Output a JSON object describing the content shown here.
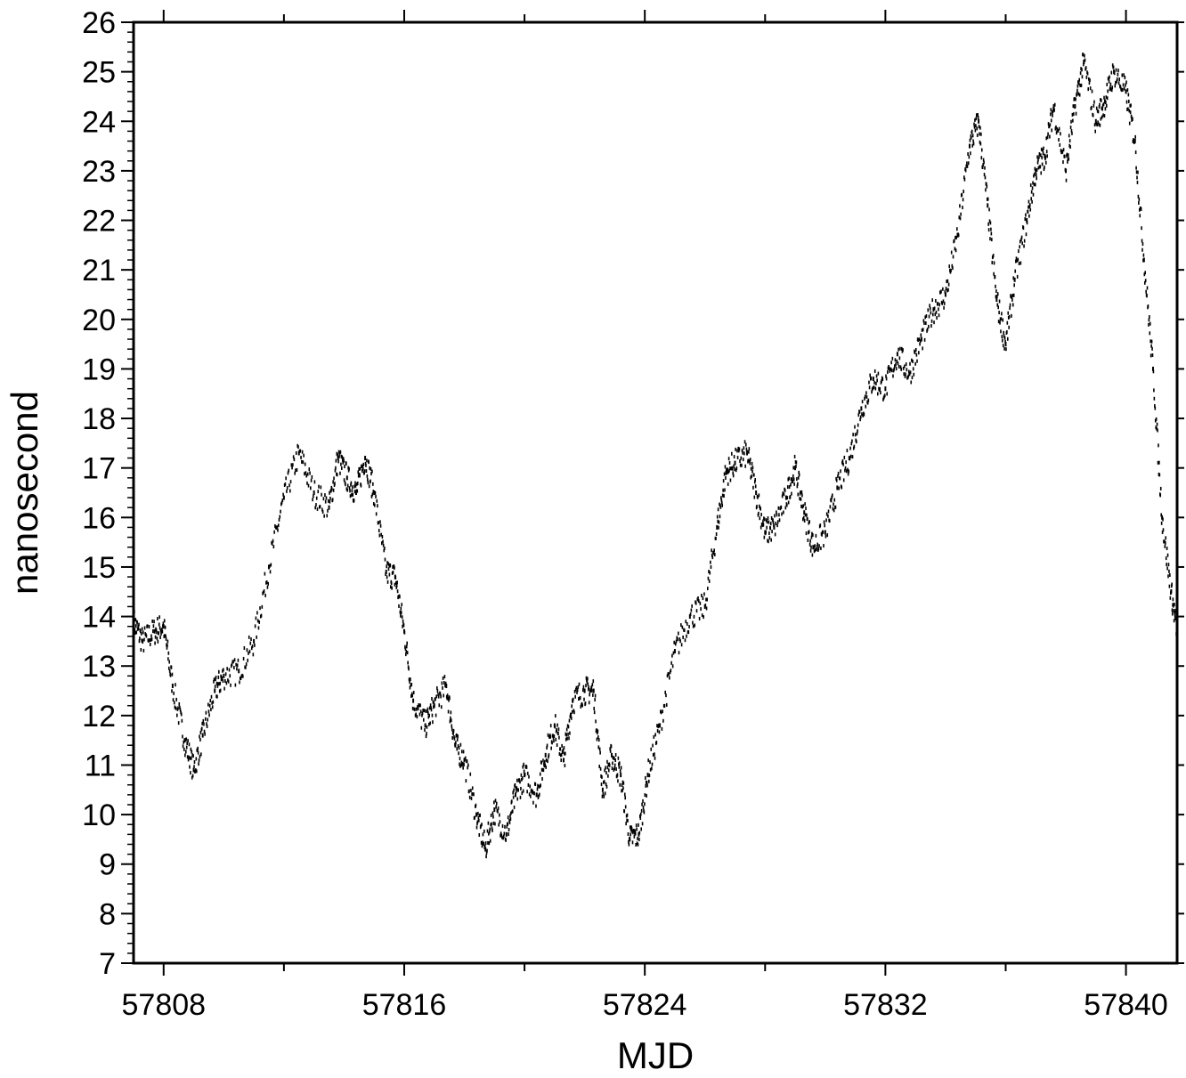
{
  "chart_data": {
    "type": "scatter",
    "title": "",
    "xlabel": "MJD",
    "ylabel": "nanosecond",
    "xlim": [
      57807.0,
      57841.7
    ],
    "ylim": [
      7,
      26
    ],
    "x_ticks": [
      57808,
      57816,
      57824,
      57832,
      57840
    ],
    "x_minor_ticks": [
      57812,
      57820,
      57828,
      57836
    ],
    "y_ticks": [
      7,
      8,
      9,
      10,
      11,
      12,
      13,
      14,
      15,
      16,
      17,
      18,
      19,
      20,
      21,
      22,
      23,
      24,
      25,
      26
    ],
    "y_minor_step": 0.2,
    "grid": false,
    "legend": "none",
    "marker_color": "#000000",
    "series": [
      {
        "name": "",
        "x": [
          57807.0,
          57807.3,
          57807.7,
          57808.0,
          57808.3,
          57808.7,
          57809.0,
          57809.3,
          57809.7,
          57810.0,
          57810.5,
          57811.0,
          57811.5,
          57812.0,
          57812.5,
          57813.0,
          57813.5,
          57813.8,
          57814.1,
          57814.4,
          57814.7,
          57815.0,
          57815.4,
          57815.7,
          57816.0,
          57816.3,
          57816.7,
          57817.0,
          57817.4,
          57817.7,
          57818.0,
          57818.4,
          57818.7,
          57819.0,
          57819.4,
          57819.7,
          57820.0,
          57820.4,
          57820.7,
          57821.0,
          57821.3,
          57821.6,
          57822.0,
          57822.3,
          57822.6,
          57822.9,
          57823.2,
          57823.5,
          57823.8,
          57824.1,
          57824.5,
          57825.0,
          57825.5,
          57826.0,
          57826.4,
          57826.7,
          57827.0,
          57827.4,
          57827.7,
          57828.0,
          57828.3,
          57828.7,
          57829.0,
          57829.3,
          57829.6,
          57830.0,
          57830.4,
          57830.8,
          57831.2,
          57831.6,
          57832.0,
          57832.4,
          57832.8,
          57833.2,
          57833.6,
          57834.0,
          57834.4,
          57834.8,
          57835.1,
          57835.4,
          57835.7,
          57836.0,
          57836.3,
          57836.7,
          57837.0,
          57837.3,
          57837.6,
          57838.0,
          57838.3,
          57838.6,
          57839.0,
          57839.3,
          57839.6,
          57840.0,
          57840.3,
          57840.6,
          57840.9,
          57841.2,
          57841.5,
          57841.7
        ],
        "y": [
          13.9,
          13.5,
          13.7,
          13.8,
          12.6,
          11.5,
          10.9,
          11.6,
          12.5,
          12.8,
          12.9,
          13.5,
          15.0,
          16.4,
          17.3,
          16.5,
          16.2,
          17.2,
          16.8,
          16.5,
          17.2,
          16.5,
          14.9,
          14.8,
          13.7,
          12.3,
          11.8,
          12.2,
          12.6,
          11.4,
          11.1,
          10.0,
          9.3,
          10.1,
          9.6,
          10.4,
          10.8,
          10.4,
          11.2,
          11.8,
          11.1,
          12.3,
          12.5,
          12.5,
          10.5,
          11.2,
          10.8,
          9.5,
          9.6,
          10.8,
          11.8,
          13.3,
          14.0,
          14.2,
          15.8,
          16.9,
          17.1,
          17.3,
          16.5,
          15.7,
          15.8,
          16.4,
          17.0,
          16.1,
          15.4,
          15.7,
          16.6,
          17.2,
          18.2,
          18.8,
          18.6,
          19.3,
          18.9,
          19.6,
          20.2,
          20.5,
          21.7,
          23.5,
          24.0,
          22.3,
          20.4,
          19.5,
          20.8,
          22.0,
          23.0,
          23.3,
          24.3,
          23.0,
          24.3,
          25.2,
          24.0,
          24.4,
          25.0,
          24.6,
          23.6,
          21.2,
          19.0,
          16.0,
          14.5,
          13.7
        ]
      }
    ]
  }
}
